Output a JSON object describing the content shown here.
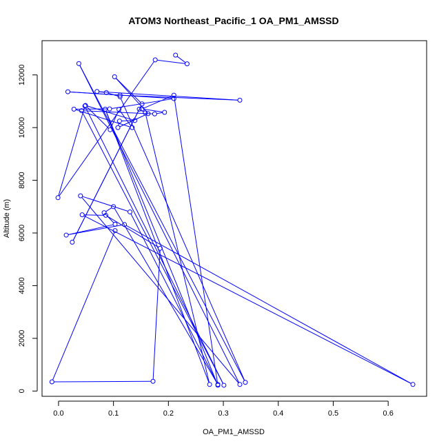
{
  "chart_data": {
    "type": "line",
    "title": "ATOM3 Northeast_Pacific_1 OA_PM1_AMSSD",
    "xlabel": "OA_PM1_AMSSD",
    "ylabel": "Altitude (m)",
    "xlim": [
      -0.03,
      0.67
    ],
    "ylim": [
      -200,
      13300
    ],
    "x_ticks": [
      0.0,
      0.1,
      0.2,
      0.3,
      0.4,
      0.5,
      0.6
    ],
    "x_tick_labels": [
      "0.0",
      "0.1",
      "0.2",
      "0.3",
      "0.4",
      "0.5",
      "0.6"
    ],
    "y_ticks": [
      0,
      2000,
      4000,
      6000,
      8000,
      10000,
      12000
    ],
    "y_tick_labels": [
      "0",
      "2000",
      "4000",
      "6000",
      "8000",
      "10000",
      "12000"
    ],
    "grid": false,
    "marker": "open-circle",
    "series": [
      {
        "color": "#0000ff",
        "x": [
          0.213,
          0.234,
          0.176,
          -0.001,
          0.048,
          0.301,
          0.042,
          0.175,
          0.193,
          0.152,
          0.21,
          0.29,
          0.085,
          0.275,
          0.158,
          0.147,
          0.025,
          0.152,
          0.102,
          0.163,
          0.108,
          0.111,
          0.139,
          0.049,
          0.094,
          0.11,
          0.134,
          0.028,
          0.093,
          0.21,
          0.017,
          0.112,
          0.33,
          0.07,
          0.087,
          0.112,
          0.34,
          0.037,
          0.33,
          0.04,
          0.13,
          0.29,
          0.1,
          0.083,
          0.103,
          0.014,
          0.12,
          0.645,
          0.043,
          0.086,
          0.185,
          0.172,
          -0.012,
          0.103
        ],
        "y": [
          12750,
          12420,
          12570,
          7340,
          10820,
          220,
          10640,
          10520,
          10580,
          10710,
          11230,
          220,
          10700,
          250,
          10560,
          10700,
          5650,
          10900,
          11930,
          10530,
          10000,
          10250,
          10270,
          10840,
          9920,
          10690,
          10000,
          10700,
          10710,
          11100,
          11360,
          11230,
          11040,
          11370,
          11330,
          11170,
          330,
          12430,
          250,
          7410,
          6800,
          250,
          7000,
          6770,
          6330,
          5920,
          6320,
          250,
          6690,
          6670,
          5420,
          370,
          350,
          6090
        ]
      }
    ]
  }
}
